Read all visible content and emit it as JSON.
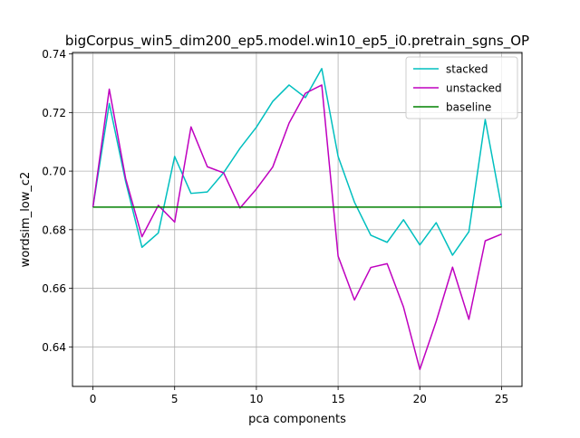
{
  "chart_data": {
    "type": "line",
    "title": "bigCorpus_win5_dim200_ep5.model.win10_ep5_i0.pretrain_sgns_OP",
    "xlabel": "pca components",
    "ylabel": "wordsim_low_c2",
    "xlim": [
      -1.25,
      26.25
    ],
    "ylim": [
      0.6265,
      0.7405
    ],
    "xticks": [
      0,
      5,
      10,
      15,
      20,
      25
    ],
    "xtick_labels": [
      "0",
      "5",
      "10",
      "15",
      "20",
      "25"
    ],
    "yticks": [
      0.64,
      0.66,
      0.68,
      0.7,
      0.72,
      0.74
    ],
    "ytick_labels": [
      "0.64",
      "0.66",
      "0.68",
      "0.70",
      "0.72",
      "0.74"
    ],
    "grid": true,
    "legend_position": "top-right",
    "x": [
      0,
      1,
      2,
      3,
      4,
      5,
      6,
      7,
      8,
      9,
      10,
      11,
      12,
      13,
      14,
      15,
      16,
      17,
      18,
      19,
      20,
      21,
      22,
      23,
      24,
      25
    ],
    "series": [
      {
        "name": "stacked",
        "color": "#00bfbf",
        "values": [
          0.6877,
          0.7231,
          0.6965,
          0.674,
          0.6789,
          0.705,
          0.6924,
          0.6929,
          0.6995,
          0.7078,
          0.715,
          0.7238,
          0.7294,
          0.7251,
          0.735,
          0.705,
          0.6894,
          0.6781,
          0.6757,
          0.6834,
          0.6748,
          0.6824,
          0.6713,
          0.6793,
          0.7176,
          0.6877
        ]
      },
      {
        "name": "unstacked",
        "color": "#bf00bf",
        "values": [
          0.6877,
          0.728,
          0.6975,
          0.6776,
          0.6883,
          0.6826,
          0.7151,
          0.7015,
          0.6994,
          0.6874,
          0.6939,
          0.7014,
          0.7164,
          0.7266,
          0.7294,
          0.671,
          0.656,
          0.6671,
          0.6684,
          0.6536,
          0.6323,
          0.6487,
          0.6672,
          0.6494,
          0.6762,
          0.6785
        ]
      },
      {
        "name": "baseline",
        "color": "#008000",
        "values": [
          0.6877,
          0.6877,
          0.6877,
          0.6877,
          0.6877,
          0.6877,
          0.6877,
          0.6877,
          0.6877,
          0.6877,
          0.6877,
          0.6877,
          0.6877,
          0.6877,
          0.6877,
          0.6877,
          0.6877,
          0.6877,
          0.6877,
          0.6877,
          0.6877,
          0.6877,
          0.6877,
          0.6877,
          0.6877,
          0.6877
        ]
      }
    ]
  }
}
